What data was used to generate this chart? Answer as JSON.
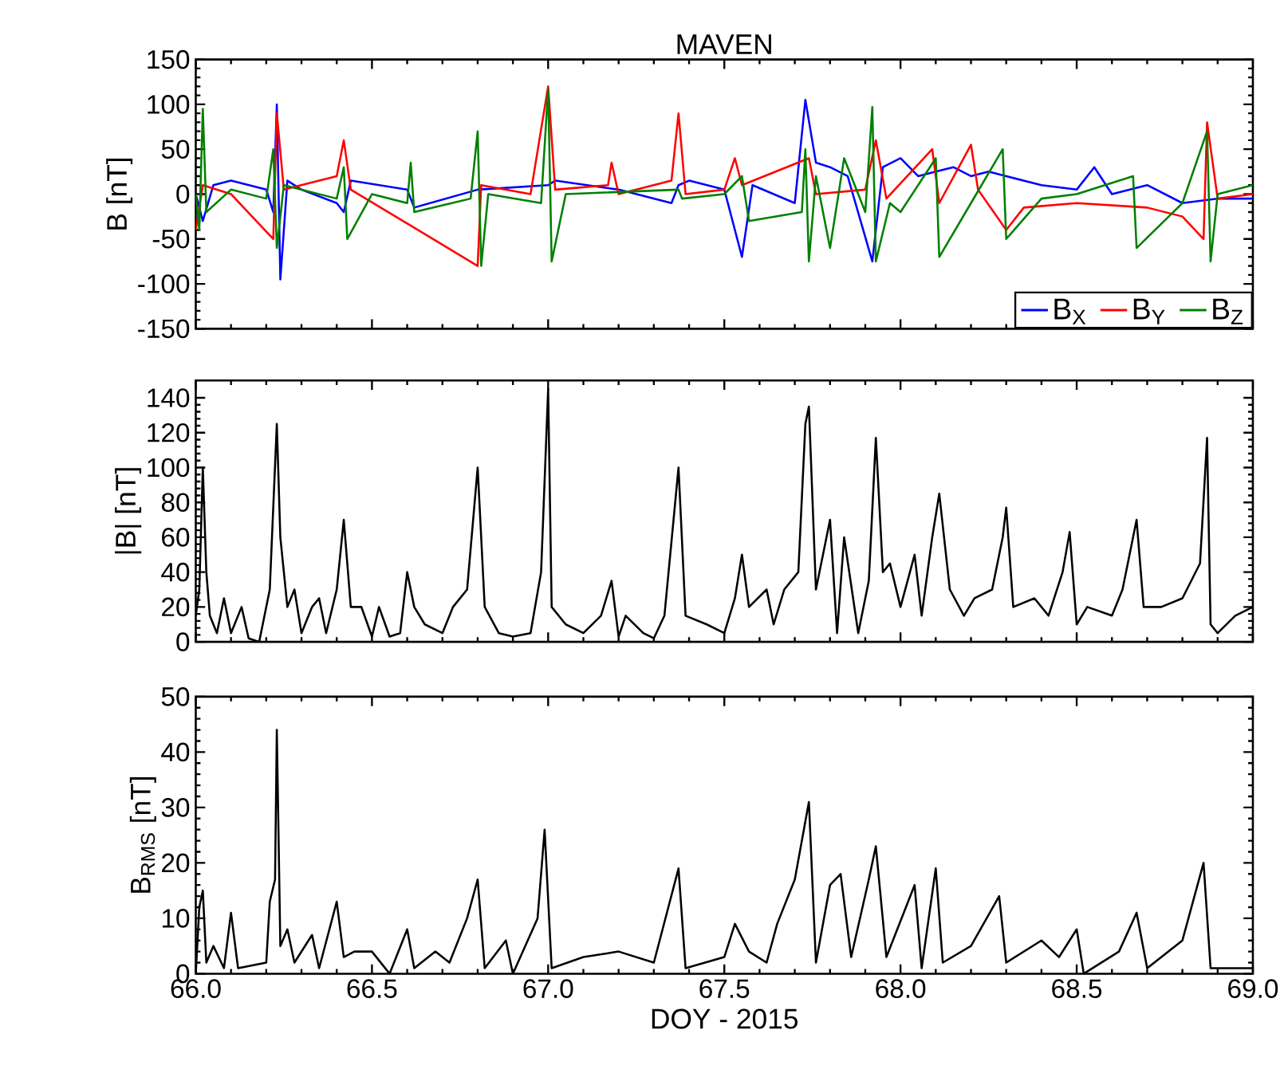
{
  "chart_data": [
    {
      "type": "line",
      "title": "MAVEN",
      "ylabel": "B [nT]",
      "xlim": [
        66.0,
        69.0
      ],
      "ylim": [
        -150,
        150
      ],
      "yticks": [
        -150,
        -100,
        -50,
        0,
        50,
        100,
        150
      ],
      "xticks": [
        {
          "value": 66.0,
          "label": null
        },
        {
          "value": 66.5,
          "label": null
        },
        {
          "value": 67.0,
          "label": null
        },
        {
          "value": 67.5,
          "label": null
        },
        {
          "value": 68.0,
          "label": null
        },
        {
          "value": 68.5,
          "label": null
        },
        {
          "value": 69.0,
          "label": null
        }
      ],
      "tick_labels": "y",
      "legend": "bottom right",
      "grid": false,
      "marker": "none",
      "line_style": "solid",
      "series": [
        {
          "name": "B$_{X}$",
          "color": "#0000ff",
          "x": [
            66.0,
            66.02,
            66.05,
            66.1,
            66.2,
            66.22,
            66.23,
            66.24,
            66.26,
            66.3,
            66.4,
            66.42,
            66.44,
            66.6,
            66.62,
            66.8,
            67.0,
            67.02,
            67.2,
            67.35,
            67.37,
            67.4,
            67.5,
            67.55,
            67.58,
            67.7,
            67.73,
            67.74,
            67.76,
            67.8,
            67.85,
            67.92,
            67.95,
            68.0,
            68.05,
            68.1,
            68.15,
            68.2,
            68.25,
            68.3,
            68.4,
            68.5,
            68.55,
            68.6,
            68.7,
            68.8,
            68.9,
            69.0
          ],
          "values": [
            0,
            -30,
            10,
            15,
            5,
            -20,
            100,
            -95,
            15,
            5,
            -10,
            -20,
            15,
            5,
            -15,
            5,
            10,
            15,
            5,
            -10,
            10,
            15,
            5,
            -70,
            10,
            -10,
            105,
            null,
            35,
            30,
            20,
            -75,
            30,
            40,
            20,
            25,
            30,
            20,
            25,
            20,
            10,
            5,
            30,
            0,
            10,
            -10,
            -5,
            -5
          ]
        },
        {
          "name": "B$_{Y}$",
          "color": "#ff0000",
          "x": [
            66.0,
            66.02,
            66.1,
            66.22,
            66.23,
            66.25,
            66.4,
            66.42,
            66.44,
            66.8,
            66.81,
            66.95,
            67.0,
            67.02,
            67.17,
            67.18,
            67.2,
            67.35,
            67.37,
            67.39,
            67.5,
            67.53,
            67.55,
            67.74,
            67.76,
            67.9,
            67.93,
            67.96,
            68.09,
            68.11,
            68.2,
            68.22,
            68.3,
            68.35,
            68.5,
            68.7,
            68.8,
            68.86,
            68.87,
            68.88,
            68.9,
            69.0
          ],
          "values": [
            -40,
            10,
            0,
            -50,
            90,
            5,
            20,
            60,
            5,
            -80,
            10,
            0,
            120,
            5,
            10,
            35,
            0,
            15,
            90,
            0,
            5,
            40,
            10,
            40,
            0,
            5,
            60,
            -5,
            50,
            -10,
            55,
            5,
            -40,
            -15,
            -10,
            -15,
            -25,
            -50,
            80,
            null,
            -5,
            0
          ]
        },
        {
          "name": "B$_{Z}$",
          "color": "#008000",
          "x": [
            66.0,
            66.01,
            66.02,
            66.03,
            66.1,
            66.2,
            66.22,
            66.23,
            66.25,
            66.4,
            66.42,
            66.43,
            66.5,
            66.6,
            66.61,
            66.62,
            66.78,
            66.8,
            66.81,
            66.83,
            66.98,
            67.0,
            67.01,
            67.05,
            67.37,
            67.38,
            67.5,
            67.55,
            67.57,
            67.72,
            67.73,
            67.74,
            67.76,
            67.8,
            67.84,
            67.9,
            67.92,
            67.93,
            67.97,
            68.0,
            68.1,
            68.11,
            68.2,
            68.29,
            68.3,
            68.4,
            68.5,
            68.66,
            68.67,
            68.8,
            68.87,
            68.88,
            68.9,
            69.0
          ],
          "values": [
            0,
            -40,
            95,
            -20,
            5,
            -5,
            50,
            -60,
            10,
            -5,
            30,
            -50,
            0,
            -10,
            35,
            -20,
            -5,
            70,
            -80,
            0,
            -10,
            117,
            -75,
            0,
            5,
            -5,
            0,
            20,
            -30,
            -20,
            50,
            -75,
            20,
            -60,
            40,
            -20,
            97,
            -75,
            -10,
            -20,
            40,
            -70,
            -10,
            50,
            -50,
            -5,
            0,
            20,
            -60,
            -10,
            70,
            -75,
            0,
            10
          ]
        }
      ]
    },
    {
      "type": "line",
      "ylabel": "|B| [nT]",
      "xlim": [
        66.0,
        69.0
      ],
      "ylim": [
        0,
        150
      ],
      "yticks": [
        0,
        20,
        40,
        60,
        80,
        100,
        120,
        140
      ],
      "xticks": [
        {
          "value": 66.0,
          "label": null
        },
        {
          "value": 66.5,
          "label": null
        },
        {
          "value": 67.0,
          "label": null
        },
        {
          "value": 67.5,
          "label": null
        },
        {
          "value": 68.0,
          "label": null
        },
        {
          "value": 68.5,
          "label": null
        },
        {
          "value": 69.0,
          "label": null
        }
      ],
      "tick_labels": "y",
      "grid": false,
      "marker": "none",
      "line_style": "solid",
      "series": [
        {
          "color": "#000000",
          "x": [
            66.0,
            66.01,
            66.02,
            66.03,
            66.04,
            66.06,
            66.08,
            66.1,
            66.13,
            66.15,
            66.18,
            66.21,
            66.23,
            66.24,
            66.26,
            66.28,
            66.3,
            66.33,
            66.35,
            66.37,
            66.4,
            66.42,
            66.44,
            66.47,
            66.5,
            66.52,
            66.55,
            66.58,
            66.6,
            66.62,
            66.65,
            66.7,
            66.73,
            66.77,
            66.8,
            66.82,
            66.86,
            66.9,
            66.95,
            66.98,
            67.0,
            67.01,
            67.05,
            67.1,
            67.15,
            67.18,
            67.2,
            67.22,
            67.27,
            67.3,
            67.33,
            67.37,
            67.39,
            67.45,
            67.5,
            67.53,
            67.55,
            67.57,
            67.62,
            67.64,
            67.67,
            67.71,
            67.73,
            67.74,
            67.76,
            67.8,
            67.82,
            67.84,
            67.88,
            67.91,
            67.93,
            67.95,
            67.97,
            68.0,
            68.04,
            68.06,
            68.09,
            68.11,
            68.14,
            68.18,
            68.21,
            68.26,
            68.29,
            68.3,
            68.32,
            68.38,
            68.42,
            68.46,
            68.48,
            68.5,
            68.53,
            68.6,
            68.63,
            68.67,
            68.69,
            68.74,
            68.8,
            68.85,
            68.87,
            68.88,
            68.9,
            68.95,
            69.0
          ],
          "values": [
            15,
            30,
            100,
            40,
            15,
            5,
            25,
            5,
            20,
            2,
            0,
            30,
            125,
            60,
            20,
            30,
            5,
            20,
            25,
            5,
            30,
            70,
            20,
            20,
            3,
            20,
            3,
            5,
            40,
            20,
            10,
            5,
            20,
            30,
            100,
            20,
            5,
            3,
            5,
            40,
            145,
            20,
            10,
            5,
            15,
            35,
            3,
            15,
            5,
            2,
            15,
            100,
            15,
            10,
            5,
            25,
            50,
            20,
            30,
            10,
            30,
            40,
            125,
            135,
            30,
            70,
            5,
            60,
            5,
            35,
            117,
            40,
            45,
            20,
            50,
            15,
            60,
            85,
            30,
            15,
            25,
            30,
            60,
            77,
            20,
            25,
            15,
            40,
            63,
            10,
            20,
            15,
            30,
            70,
            20,
            20,
            25,
            45,
            117,
            10,
            5,
            15,
            20
          ]
        }
      ]
    },
    {
      "type": "line",
      "xlabel": "DOY - 2015",
      "ylabel": "B$_{RMS}$ [nT]",
      "xlim": [
        66.0,
        69.0
      ],
      "ylim": [
        0,
        50
      ],
      "yticks": [
        0,
        10,
        20,
        30,
        40,
        50
      ],
      "xticks": [
        {
          "value": 66.0,
          "label": "66.0"
        },
        {
          "value": 66.5,
          "label": "66.5"
        },
        {
          "value": 67.0,
          "label": "67.0"
        },
        {
          "value": 67.5,
          "label": "67.5"
        },
        {
          "value": 68.0,
          "label": "68.0"
        },
        {
          "value": 68.5,
          "label": "68.5"
        },
        {
          "value": 69.0,
          "label": "69.0"
        }
      ],
      "grid": false,
      "marker": "none",
      "line_style": "solid",
      "series": [
        {
          "color": "#000000",
          "x": [
            66.0,
            66.01,
            66.02,
            66.03,
            66.05,
            66.08,
            66.1,
            66.12,
            66.2,
            66.21,
            66.225,
            66.23,
            66.24,
            66.26,
            66.28,
            66.33,
            66.35,
            66.4,
            66.42,
            66.45,
            66.5,
            66.55,
            66.6,
            66.62,
            66.68,
            66.72,
            66.77,
            66.8,
            66.82,
            66.88,
            66.9,
            66.97,
            66.99,
            67.01,
            67.1,
            67.2,
            67.3,
            67.37,
            67.39,
            67.5,
            67.53,
            67.57,
            67.62,
            67.65,
            67.7,
            67.74,
            67.76,
            67.8,
            67.83,
            67.86,
            67.91,
            67.93,
            67.96,
            68.04,
            68.06,
            68.1,
            68.12,
            68.2,
            68.28,
            68.3,
            68.4,
            68.45,
            68.5,
            68.52,
            68.62,
            68.67,
            68.7,
            68.8,
            68.86,
            68.88,
            69.0
          ],
          "values": [
            0,
            12,
            15,
            2,
            5,
            1,
            11,
            1,
            2,
            13,
            17,
            44,
            5,
            8,
            2,
            7,
            1,
            13,
            3,
            4,
            4,
            0,
            8,
            1,
            4,
            2,
            10,
            17,
            1,
            6,
            0,
            10,
            26,
            1,
            3,
            4,
            2,
            19,
            1,
            3,
            9,
            4,
            2,
            9,
            17,
            31,
            2,
            16,
            18,
            3,
            17,
            23,
            3,
            16,
            1,
            19,
            2,
            5,
            14,
            2,
            6,
            3,
            8,
            0,
            4,
            11,
            1,
            6,
            20,
            1,
            1
          ]
        }
      ]
    }
  ]
}
